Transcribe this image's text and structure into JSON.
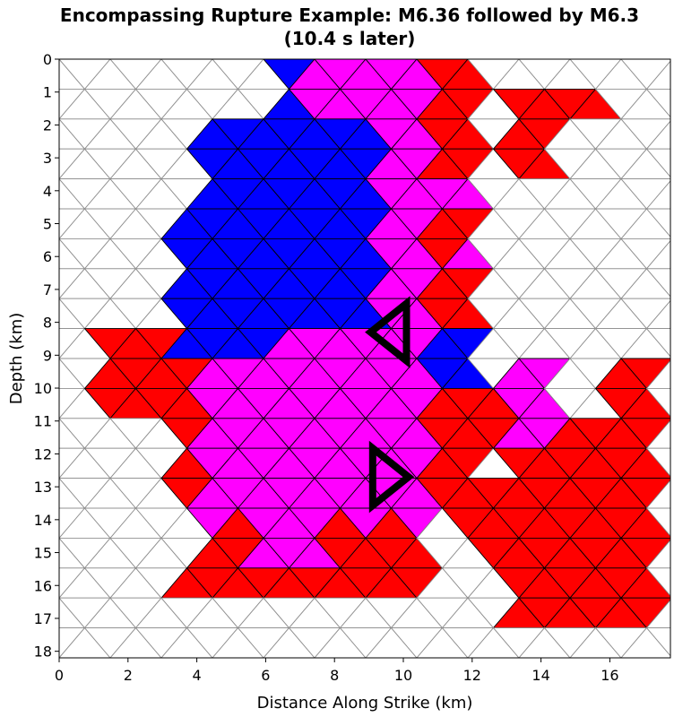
{
  "figure": {
    "title_line1": "Encompassing Rupture Example: M6.36 followed by M6.3",
    "title_line2": "(10.4 s later)",
    "xlabel": "Distance Along Strike (km)",
    "ylabel": "Depth (km)",
    "x_ticks": [
      "0",
      "2",
      "4",
      "6",
      "8",
      "10",
      "12",
      "14",
      "16"
    ],
    "y_ticks": [
      "0",
      "1",
      "2",
      "3",
      "4",
      "5",
      "6",
      "7",
      "8",
      "9",
      "10",
      "11",
      "12",
      "13",
      "14",
      "15",
      "16",
      "17",
      "18"
    ]
  },
  "chart_data": {
    "type": "heatmap",
    "title": "Encompassing Rupture Example: M6.36 followed by M6.3 (10.4 s later)",
    "xlabel": "Distance Along Strike (km)",
    "ylabel": "Depth (km)",
    "xlim": [
      0,
      17.6
    ],
    "ylim": [
      18.2,
      0
    ],
    "grid": "triangular mesh",
    "colors": {
      "first_event_only": "#0000ff",
      "both_events": "#ff00ff",
      "second_event_only": "#ff0000",
      "unruptured": "#ffffff",
      "mesh_line": "#909090",
      "hypocenter_marker": "#000000"
    },
    "markers": [
      {
        "shape": "triangle",
        "pointing": "left",
        "x": 9.8,
        "depth": 8.3
      },
      {
        "shape": "triangle",
        "pointing": "right",
        "x": 9.4,
        "depth": 12.7
      }
    ]
  }
}
